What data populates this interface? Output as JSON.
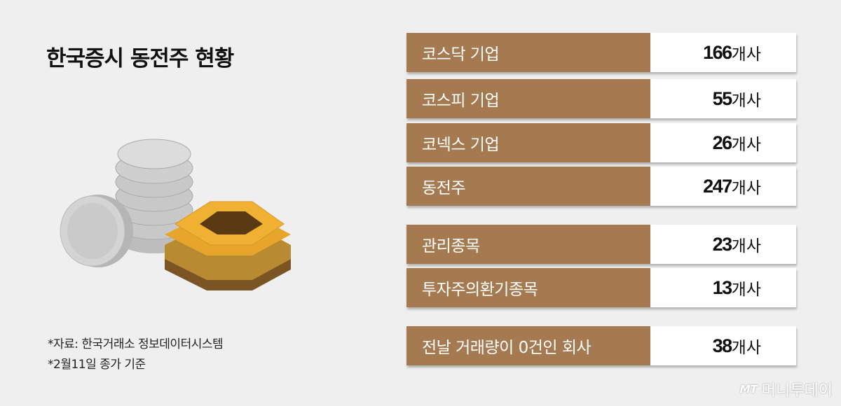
{
  "title": "한국증시 동전주 현황",
  "notes": [
    "*자료: 한국거래소 정보데이터시스템",
    "*2월11일 종가 기준"
  ],
  "watermark": {
    "logo": "MT",
    "name": "머니투데이"
  },
  "colors": {
    "label_bg": "#a67a50",
    "value_bg": "#ffffff",
    "background": "#efefef"
  },
  "chart_data": {
    "type": "table",
    "title": "한국증시 동전주 현황",
    "unit": "개사",
    "rows": [
      {
        "label": "코스닥 기업",
        "value": 166,
        "unit": "개사"
      },
      {
        "label": "코스피 기업",
        "value": 55,
        "unit": "개사"
      },
      {
        "label": "코넥스 기업",
        "value": 26,
        "unit": "개사"
      },
      {
        "label": "동전주",
        "value": 247,
        "unit": "개사"
      },
      {
        "label": "관리종목",
        "value": 23,
        "unit": "개사"
      },
      {
        "label": "투자주의환기종목",
        "value": 13,
        "unit": "개사"
      },
      {
        "label": "전날 거래량이 0건인 회사",
        "value": 38,
        "unit": "개사"
      }
    ]
  }
}
